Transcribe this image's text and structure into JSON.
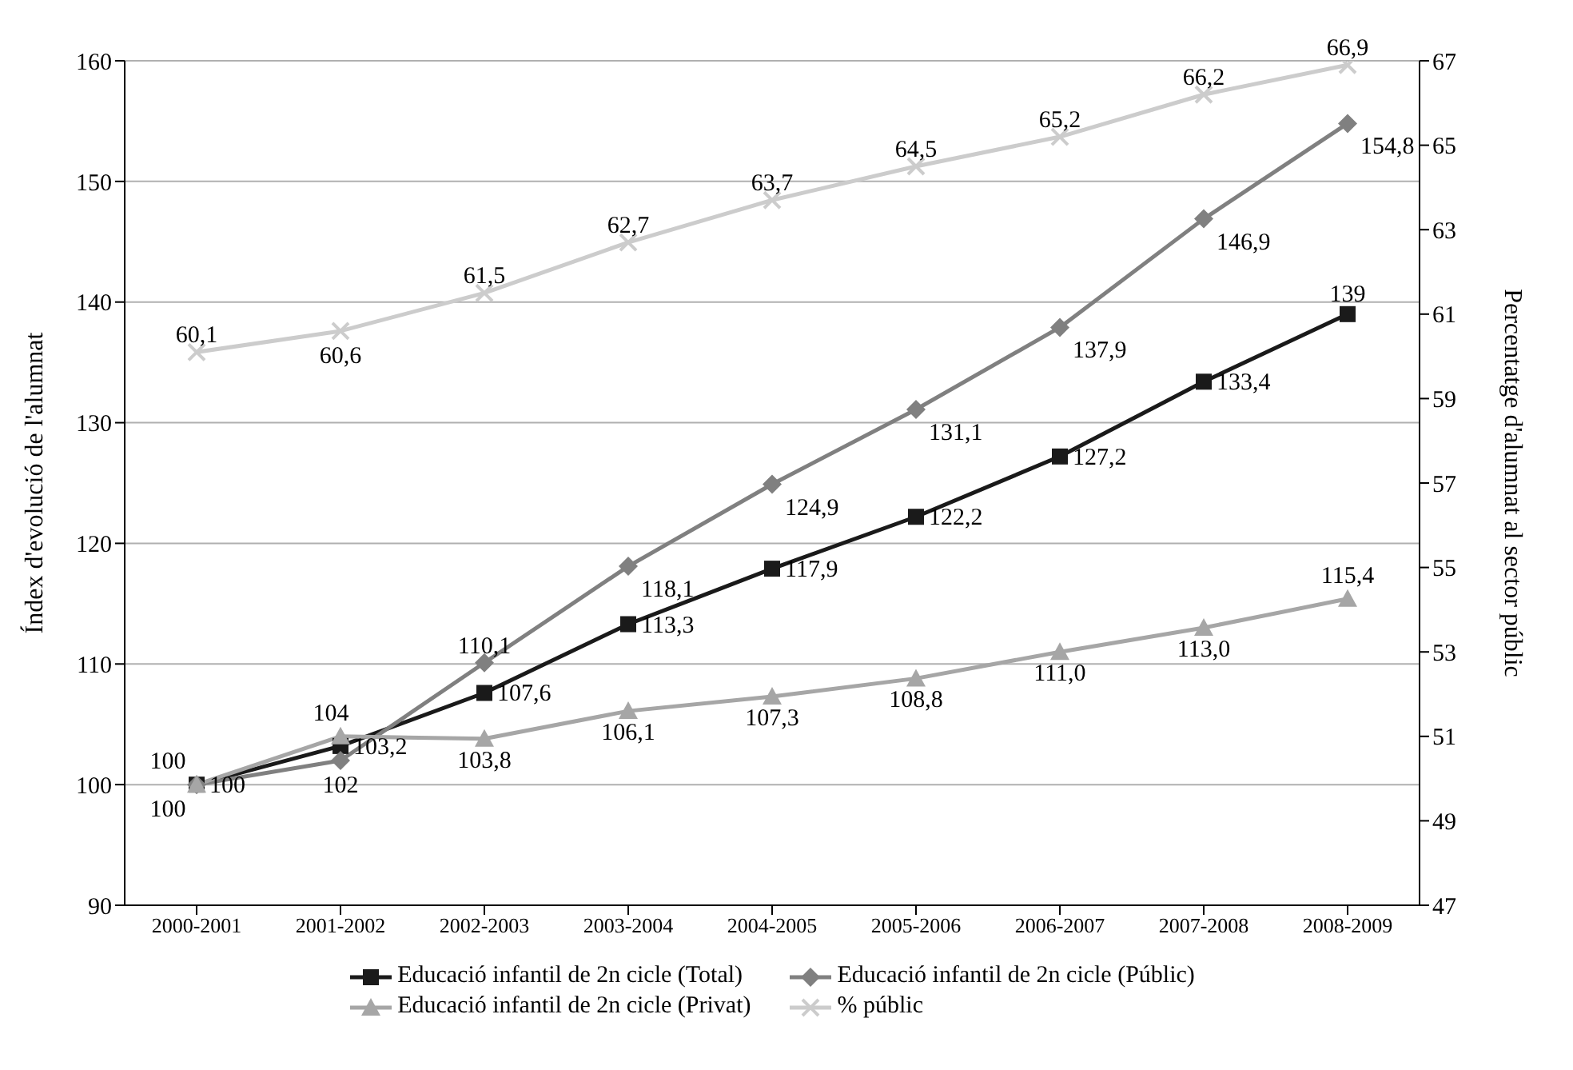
{
  "chart_data": {
    "type": "line",
    "categories": [
      "2000-2001",
      "2001-2002",
      "2002-2003",
      "2003-2004",
      "2004-2005",
      "2005-2006",
      "2006-2007",
      "2007-2008",
      "2008-2009"
    ],
    "series": [
      {
        "name": "Educació infantil de 2n cicle (Total)",
        "color": "#1a1a1a",
        "marker": "square",
        "values": [
          100,
          103.2,
          107.6,
          113.3,
          117.9,
          122.2,
          127.2,
          133.4,
          139
        ],
        "value_labels": [
          "100",
          "103,2",
          "107,6",
          "113,3",
          "117,9",
          "122,2",
          "127,2",
          "133,4",
          "139"
        ]
      },
      {
        "name": "Educació infantil de 2n cicle (Públic)",
        "color": "#808080",
        "marker": "diamond",
        "values": [
          100,
          102,
          110.1,
          118.1,
          124.9,
          131.1,
          137.9,
          146.9,
          154.8
        ],
        "value_labels": [
          "100",
          "102",
          "110,1",
          "118,1",
          "124,9",
          "131,1",
          "137,9",
          "146,9",
          "154,8"
        ]
      },
      {
        "name": "Educació infantil de 2n cicle (Privat)",
        "color": "#a6a6a6",
        "marker": "triangle",
        "values": [
          100,
          104,
          103.8,
          106.1,
          107.3,
          108.8,
          111.0,
          113.0,
          115.4
        ],
        "value_labels": [
          "100",
          "104",
          "103,8",
          "106,1",
          "107,3",
          "108,8",
          "111,0",
          "113,0",
          "115,4"
        ]
      },
      {
        "name": "% públic",
        "color": "#cccccc",
        "marker": "cross",
        "axis": "y2",
        "values": [
          60.1,
          60.6,
          61.5,
          62.7,
          63.7,
          64.5,
          65.2,
          66.2,
          66.9
        ],
        "value_labels": [
          "60,1",
          "60,6",
          "61,5",
          "62,7",
          "63,7",
          "64,5",
          "65,2",
          "66,2",
          "66,9"
        ]
      }
    ],
    "ylabel": "Índex d'evolució de l'alumnat",
    "y2label": "Percentatge d'alumnat al sector públic",
    "ylim": [
      90,
      160
    ],
    "yticks": [
      90,
      100,
      110,
      120,
      130,
      140,
      150,
      160
    ],
    "y2lim": [
      47,
      67
    ],
    "y2ticks": [
      47,
      49,
      51,
      53,
      55,
      57,
      59,
      61,
      63,
      65,
      67
    ],
    "grid": "y",
    "legend": "bottom"
  }
}
